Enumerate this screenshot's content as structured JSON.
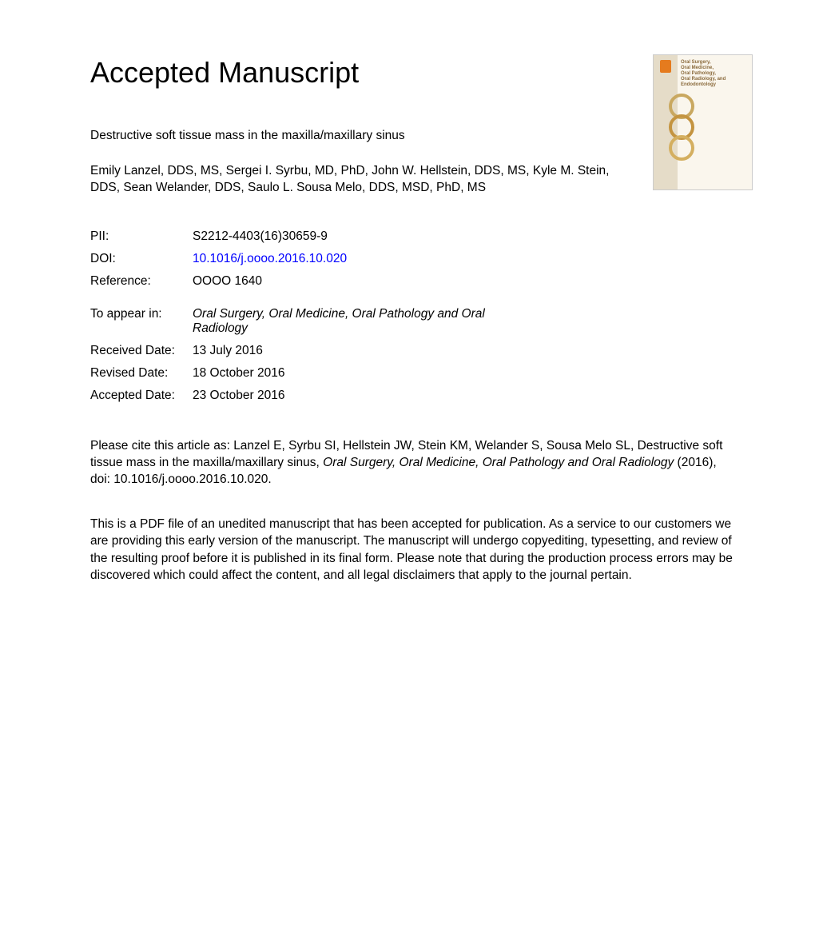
{
  "heading": "Accepted Manuscript",
  "title": "Destructive soft tissue mass in the maxilla/maxillary sinus",
  "authors": "Emily Lanzel, DDS, MS, Sergei I. Syrbu, MD, PhD, John W. Hellstein, DDS, MS, Kyle M. Stein, DDS, Sean Welander, DDS, Saulo L. Sousa Melo, DDS, MSD, PhD, MS",
  "meta": {
    "pii_label": "PII:",
    "pii_value": "S2212-4403(16)30659-9",
    "doi_label": "DOI:",
    "doi_value": "10.1016/j.oooo.2016.10.020",
    "reference_label": "Reference:",
    "reference_value": "OOOO 1640",
    "appear_label": "To appear in:",
    "appear_value": "Oral Surgery, Oral Medicine, Oral Pathology and Oral Radiology",
    "received_label": "Received Date:",
    "received_value": "13 July 2016",
    "revised_label": "Revised Date:",
    "revised_value": "18 October 2016",
    "accepted_label": "Accepted Date:",
    "accepted_value": "23 October 2016"
  },
  "citation": {
    "prefix": "Please cite this article as: Lanzel E, Syrbu SI, Hellstein JW, Stein KM, Welander S, Sousa Melo SL, Destructive soft tissue mass in the maxilla/maxillary sinus, ",
    "journal": "Oral Surgery, Oral Medicine, Oral Pathology and Oral Radiology",
    "suffix": " (2016), doi: 10.1016/j.oooo.2016.10.020."
  },
  "disclaimer": "This is a PDF file of an unedited manuscript that has been accepted for publication. As a service to our customers we are providing this early version of the manuscript. The manuscript will undergo copyediting, typesetting, and review of the resulting proof before it is published in its final form. Please note that during the production process errors may be discovered which could affect the content, and all legal disclaimers that apply to the journal pertain.",
  "cover": {
    "title_line1": "Oral Surgery,",
    "title_line2": "Oral Medicine,",
    "title_line3": "Oral Pathology,",
    "title_line4": "Oral Radiology, and",
    "title_line5": "Endodontology",
    "ring_colors": [
      "#c9a860",
      "#c49440",
      "#d4af60"
    ],
    "background": "#faf6ed",
    "spine": "#e5dcc8"
  },
  "styles": {
    "heading_fontsize": 36,
    "body_fontsize": 15.5,
    "link_color": "#0000ff",
    "text_color": "#000000",
    "page_background": "#ffffff"
  }
}
